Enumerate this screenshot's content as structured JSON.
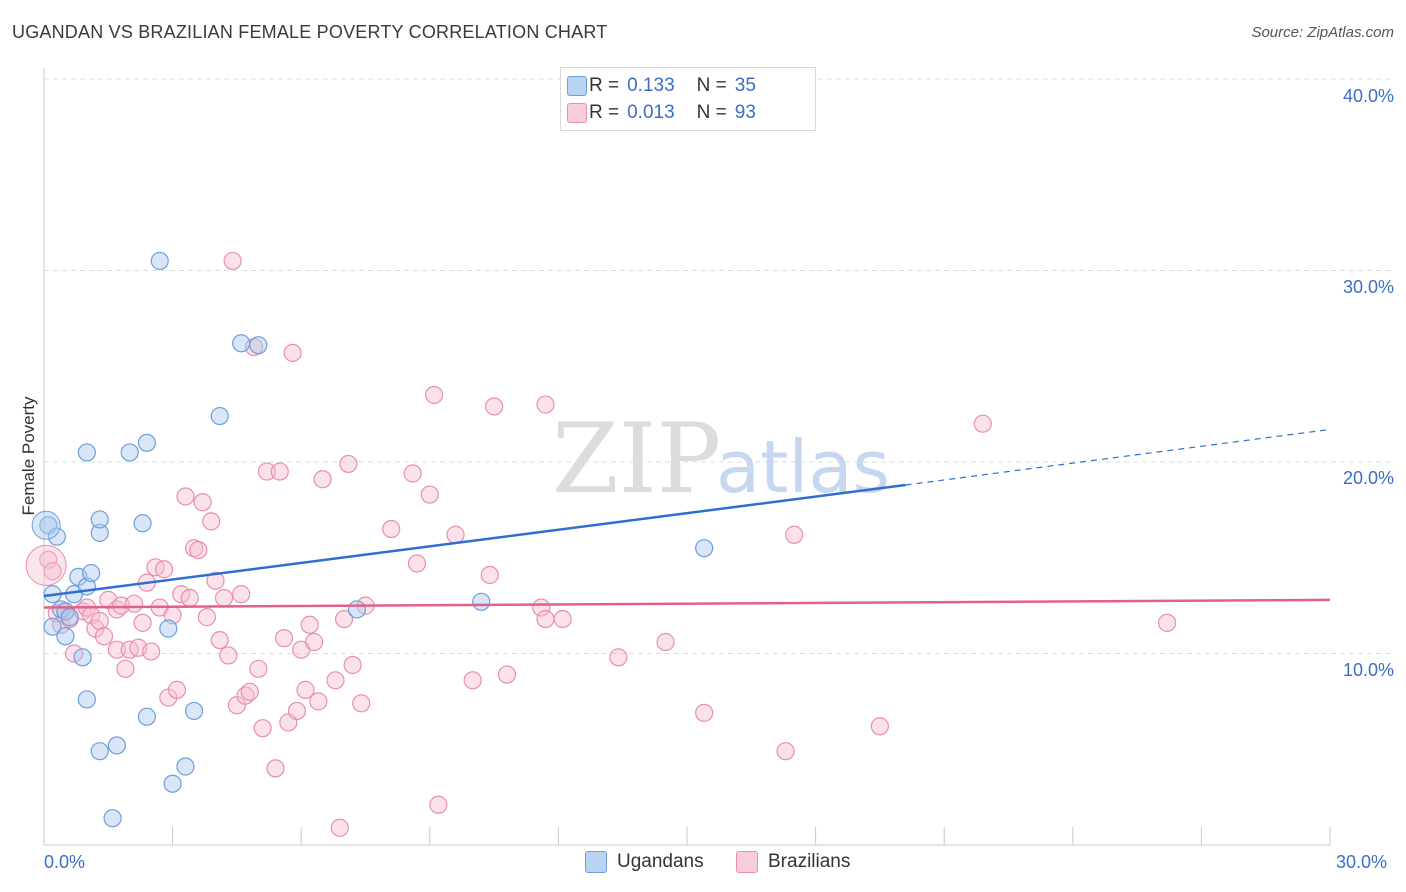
{
  "title": "UGANDAN VS BRAZILIAN FEMALE POVERTY CORRELATION CHART",
  "source": "Source: ZipAtlas.com",
  "watermark": {
    "zip": "ZIP",
    "atlas": "atlas"
  },
  "colors": {
    "ugandans_fill": "#a9c8ef",
    "ugandans_stroke": "#6f9fd8",
    "ugandans_line": "#2f6fd0",
    "brazilians_fill": "#f6bfd0",
    "brazilians_stroke": "#e88fae",
    "brazilians_line": "#e2608c",
    "axis_text": "#3a6fc4",
    "grid": "#dddddd"
  },
  "legend_top": {
    "rows": [
      {
        "r_label": "R =",
        "r_value": "0.133",
        "n_label": "N =",
        "n_value": "35"
      },
      {
        "r_label": "R =",
        "r_value": "0.013",
        "n_label": "N =",
        "n_value": "93"
      }
    ]
  },
  "legend_bottom": {
    "items": [
      "Ugandans",
      "Brazilians"
    ]
  },
  "chart_data": {
    "type": "scatter",
    "title": "UGANDAN VS BRAZILIAN FEMALE POVERTY CORRELATION CHART",
    "xlabel": "",
    "ylabel": "Female Poverty",
    "xlim": [
      0,
      30
    ],
    "ylim": [
      0,
      40
    ],
    "x_tick_labels": [
      "0.0%",
      "30.0%"
    ],
    "y_ticks": [
      10,
      20,
      30,
      40
    ],
    "y_tick_labels": [
      "10.0%",
      "20.0%",
      "30.0%",
      "40.0%"
    ],
    "grid": "horizontal dashed",
    "legend": "top-center",
    "series": [
      {
        "name": "Ugandans",
        "r": 0.133,
        "n": 35,
        "trend": {
          "x": [
            0,
            20.1
          ],
          "y": [
            13.0,
            18.8
          ],
          "dashed_to": [
            30,
            21.7
          ]
        },
        "points": [
          [
            0.1,
            16.7
          ],
          [
            0.3,
            16.1
          ],
          [
            0.2,
            13.1
          ],
          [
            0.4,
            12.3
          ],
          [
            0.5,
            12.2
          ],
          [
            0.6,
            11.9
          ],
          [
            0.2,
            11.4
          ],
          [
            0.5,
            10.9
          ],
          [
            0.7,
            13.1
          ],
          [
            0.8,
            14.0
          ],
          [
            1.0,
            13.5
          ],
          [
            1.1,
            14.2
          ],
          [
            0.9,
            9.8
          ],
          [
            1.0,
            7.6
          ],
          [
            1.3,
            4.9
          ],
          [
            1.7,
            5.2
          ],
          [
            1.6,
            1.4
          ],
          [
            1.3,
            16.3
          ],
          [
            1.3,
            17.0
          ],
          [
            1.0,
            20.5
          ],
          [
            2.0,
            20.5
          ],
          [
            2.4,
            21.0
          ],
          [
            2.3,
            16.8
          ],
          [
            2.4,
            6.7
          ],
          [
            2.7,
            30.5
          ],
          [
            2.9,
            11.3
          ],
          [
            3.3,
            4.1
          ],
          [
            3.0,
            3.2
          ],
          [
            3.5,
            7.0
          ],
          [
            4.1,
            22.4
          ],
          [
            4.6,
            26.2
          ],
          [
            5.0,
            26.1
          ],
          [
            7.3,
            12.3
          ],
          [
            10.2,
            12.7
          ],
          [
            15.4,
            15.5
          ]
        ]
      },
      {
        "name": "Brazilians",
        "r": 0.013,
        "n": 93,
        "trend": {
          "x": [
            0,
            30
          ],
          "y": [
            12.4,
            12.8
          ]
        },
        "points": [
          [
            0.1,
            14.9
          ],
          [
            0.2,
            14.3
          ],
          [
            0.3,
            12.1
          ],
          [
            0.4,
            11.5
          ],
          [
            0.6,
            11.8
          ],
          [
            0.7,
            10.0
          ],
          [
            0.9,
            12.2
          ],
          [
            1.0,
            12.4
          ],
          [
            1.1,
            12.0
          ],
          [
            1.2,
            11.3
          ],
          [
            1.3,
            11.7
          ],
          [
            1.4,
            10.9
          ],
          [
            1.5,
            12.8
          ],
          [
            1.7,
            12.3
          ],
          [
            1.8,
            12.5
          ],
          [
            1.7,
            10.2
          ],
          [
            1.9,
            9.2
          ],
          [
            2.0,
            10.2
          ],
          [
            2.1,
            12.6
          ],
          [
            2.2,
            10.3
          ],
          [
            2.3,
            11.6
          ],
          [
            2.4,
            13.7
          ],
          [
            2.5,
            10.1
          ],
          [
            2.6,
            14.5
          ],
          [
            2.7,
            12.4
          ],
          [
            2.8,
            14.4
          ],
          [
            2.9,
            7.7
          ],
          [
            3.0,
            12.0
          ],
          [
            3.1,
            8.1
          ],
          [
            3.2,
            13.1
          ],
          [
            3.3,
            18.2
          ],
          [
            3.4,
            12.9
          ],
          [
            3.5,
            15.5
          ],
          [
            3.6,
            15.4
          ],
          [
            3.7,
            17.9
          ],
          [
            3.8,
            11.9
          ],
          [
            3.9,
            16.9
          ],
          [
            4.0,
            13.8
          ],
          [
            4.1,
            10.7
          ],
          [
            4.2,
            12.9
          ],
          [
            4.3,
            9.9
          ],
          [
            4.4,
            30.5
          ],
          [
            4.5,
            7.3
          ],
          [
            4.6,
            13.1
          ],
          [
            4.7,
            7.8
          ],
          [
            4.8,
            8.0
          ],
          [
            4.9,
            26.0
          ],
          [
            5.0,
            9.2
          ],
          [
            5.1,
            6.1
          ],
          [
            5.2,
            19.5
          ],
          [
            5.4,
            4.0
          ],
          [
            5.5,
            19.5
          ],
          [
            5.6,
            10.8
          ],
          [
            5.7,
            6.4
          ],
          [
            5.8,
            25.7
          ],
          [
            5.9,
            7.0
          ],
          [
            6.0,
            10.2
          ],
          [
            6.1,
            8.1
          ],
          [
            6.2,
            11.5
          ],
          [
            6.3,
            10.6
          ],
          [
            6.4,
            7.5
          ],
          [
            6.5,
            19.1
          ],
          [
            6.8,
            8.6
          ],
          [
            7.0,
            11.8
          ],
          [
            7.1,
            19.9
          ],
          [
            7.2,
            9.4
          ],
          [
            7.4,
            7.4
          ],
          [
            7.5,
            12.5
          ],
          [
            6.9,
            0.9
          ],
          [
            8.1,
            16.5
          ],
          [
            8.7,
            14.7
          ],
          [
            9.0,
            18.3
          ],
          [
            9.1,
            23.5
          ],
          [
            9.2,
            2.1
          ],
          [
            9.6,
            16.2
          ],
          [
            10.0,
            8.6
          ],
          [
            10.4,
            14.1
          ],
          [
            10.5,
            22.9
          ],
          [
            10.8,
            8.9
          ],
          [
            11.7,
            23.0
          ],
          [
            11.6,
            12.4
          ],
          [
            11.7,
            11.8
          ],
          [
            12.1,
            11.8
          ],
          [
            13.4,
            9.8
          ],
          [
            14.5,
            10.6
          ],
          [
            15.4,
            6.9
          ],
          [
            17.3,
            4.9
          ],
          [
            17.5,
            16.2
          ],
          [
            19.5,
            6.2
          ],
          [
            21.9,
            22.0
          ],
          [
            26.2,
            11.6
          ],
          [
            0.5,
            12.2
          ],
          [
            8.6,
            19.4
          ]
        ]
      }
    ]
  }
}
